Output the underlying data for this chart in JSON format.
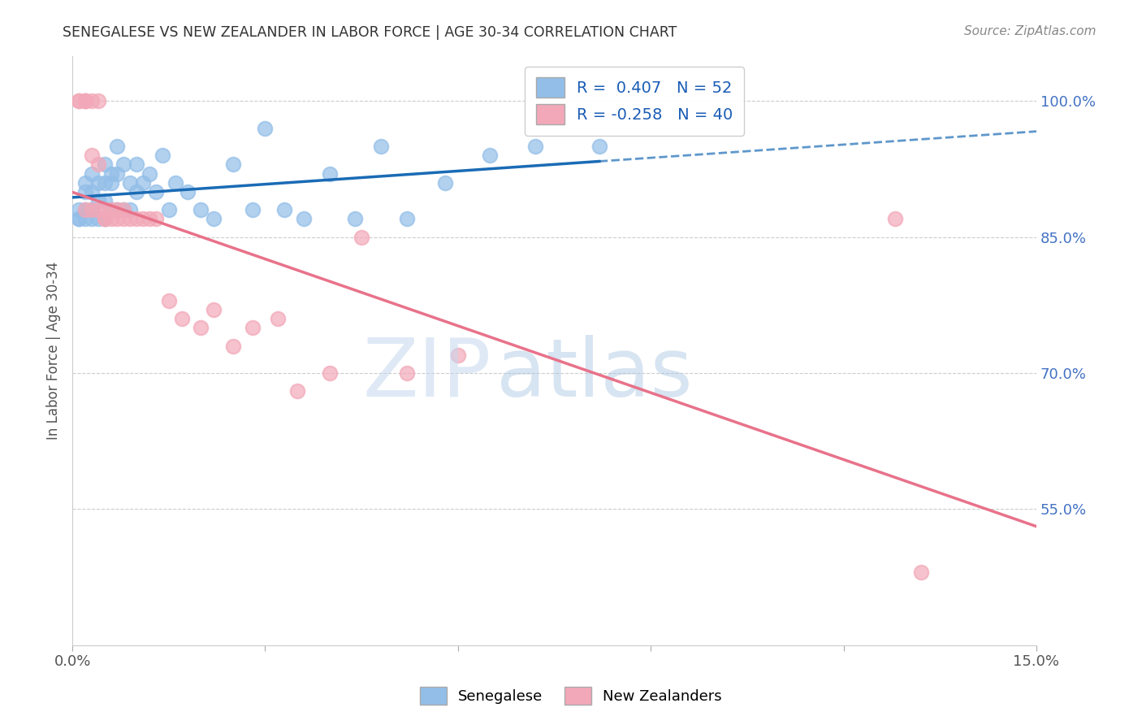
{
  "title": "SENEGALESE VS NEW ZEALANDER IN LABOR FORCE | AGE 30-34 CORRELATION CHART",
  "source": "Source: ZipAtlas.com",
  "ylabel": "In Labor Force | Age 30-34",
  "xlim": [
    0.0,
    0.15
  ],
  "ylim": [
    0.4,
    1.05
  ],
  "xticks": [
    0.0,
    0.03,
    0.06,
    0.09,
    0.12,
    0.15
  ],
  "xticklabels": [
    "0.0%",
    "",
    "",
    "",
    "",
    "15.0%"
  ],
  "yticks_right": [
    0.55,
    0.7,
    0.85,
    1.0
  ],
  "ytick_right_labels": [
    "55.0%",
    "70.0%",
    "85.0%",
    "100.0%"
  ],
  "blue_r": 0.407,
  "blue_n": 52,
  "pink_r": -0.258,
  "pink_n": 40,
  "blue_color": "#92BEE8",
  "pink_color": "#F2A8B8",
  "blue_line_color": "#1A6BB5",
  "pink_line_color": "#E8728A",
  "blue_scatter_x": [
    0.001,
    0.001,
    0.001,
    0.002,
    0.002,
    0.002,
    0.002,
    0.003,
    0.003,
    0.003,
    0.003,
    0.004,
    0.004,
    0.004,
    0.005,
    0.005,
    0.005,
    0.005,
    0.006,
    0.006,
    0.006,
    0.007,
    0.007,
    0.007,
    0.008,
    0.008,
    0.009,
    0.009,
    0.01,
    0.01,
    0.011,
    0.012,
    0.013,
    0.014,
    0.015,
    0.016,
    0.018,
    0.02,
    0.022,
    0.025,
    0.028,
    0.03,
    0.033,
    0.036,
    0.04,
    0.044,
    0.048,
    0.052,
    0.058,
    0.065,
    0.072,
    0.082
  ],
  "blue_scatter_y": [
    0.88,
    0.87,
    0.87,
    0.91,
    0.9,
    0.88,
    0.87,
    0.92,
    0.9,
    0.88,
    0.87,
    0.91,
    0.89,
    0.87,
    0.93,
    0.91,
    0.89,
    0.87,
    0.92,
    0.91,
    0.88,
    0.95,
    0.92,
    0.88,
    0.93,
    0.88,
    0.91,
    0.88,
    0.93,
    0.9,
    0.91,
    0.92,
    0.9,
    0.94,
    0.88,
    0.91,
    0.9,
    0.88,
    0.87,
    0.93,
    0.88,
    0.97,
    0.88,
    0.87,
    0.92,
    0.87,
    0.95,
    0.87,
    0.91,
    0.94,
    0.95,
    0.95
  ],
  "pink_scatter_x": [
    0.001,
    0.001,
    0.002,
    0.002,
    0.002,
    0.002,
    0.003,
    0.003,
    0.003,
    0.004,
    0.004,
    0.004,
    0.005,
    0.005,
    0.005,
    0.006,
    0.006,
    0.007,
    0.007,
    0.008,
    0.008,
    0.009,
    0.01,
    0.011,
    0.012,
    0.013,
    0.015,
    0.017,
    0.02,
    0.022,
    0.025,
    0.028,
    0.032,
    0.035,
    0.04,
    0.045,
    0.052,
    0.06,
    0.128,
    0.132
  ],
  "pink_scatter_y": [
    1.0,
    1.0,
    1.0,
    1.0,
    1.0,
    0.88,
    1.0,
    0.94,
    0.88,
    1.0,
    0.93,
    0.88,
    0.88,
    0.87,
    0.87,
    0.88,
    0.87,
    0.88,
    0.87,
    0.88,
    0.87,
    0.87,
    0.87,
    0.87,
    0.87,
    0.87,
    0.78,
    0.76,
    0.75,
    0.77,
    0.73,
    0.75,
    0.76,
    0.68,
    0.7,
    0.85,
    0.7,
    0.72,
    0.87,
    0.48
  ]
}
